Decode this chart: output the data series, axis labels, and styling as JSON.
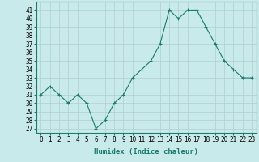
{
  "x": [
    0,
    1,
    2,
    3,
    4,
    5,
    6,
    7,
    8,
    9,
    10,
    11,
    12,
    13,
    14,
    15,
    16,
    17,
    18,
    19,
    20,
    21,
    22,
    23
  ],
  "y": [
    31,
    32,
    31,
    30,
    31,
    30,
    27,
    28,
    30,
    31,
    33,
    34,
    35,
    37,
    41,
    40,
    41,
    41,
    39,
    37,
    35,
    34,
    33,
    33
  ],
  "line_color": "#1a7a6e",
  "marker": "+",
  "bg_color": "#c8eaea",
  "grid_color": "#b0d0d0",
  "xlabel": "Humidex (Indice chaleur)",
  "xlabel_fontsize": 6.5,
  "ylabel_ticks": [
    27,
    28,
    29,
    30,
    31,
    32,
    33,
    34,
    35,
    36,
    37,
    38,
    39,
    40,
    41
  ],
  "xlim": [
    -0.5,
    23.5
  ],
  "ylim": [
    26.5,
    42
  ],
  "tick_fontsize": 5.5
}
